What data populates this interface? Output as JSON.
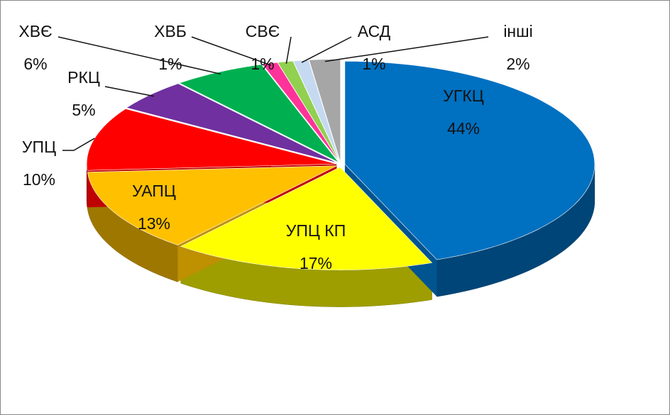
{
  "chart_data": {
    "type": "pie",
    "categories": [
      "УГКЦ",
      "УПЦ КП",
      "УАПЦ",
      "УПЦ",
      "РКЦ",
      "ХВЄ",
      "ХВБ",
      "СВЄ",
      "АСД",
      "інші"
    ],
    "values": [
      44,
      17,
      13,
      10,
      5,
      6,
      1,
      1,
      1,
      2
    ],
    "value_labels": [
      "44%",
      "17%",
      "13%",
      "10%",
      "5%",
      "6%",
      "1%",
      "1%",
      "1%",
      "2%"
    ],
    "colors": [
      "#0070c0",
      "#ffff00",
      "#ffc000",
      "#ff0000",
      "#7030a0",
      "#00b050",
      "#ff3399",
      "#92d050",
      "#c5d9f1",
      "#a6a6a6"
    ]
  }
}
